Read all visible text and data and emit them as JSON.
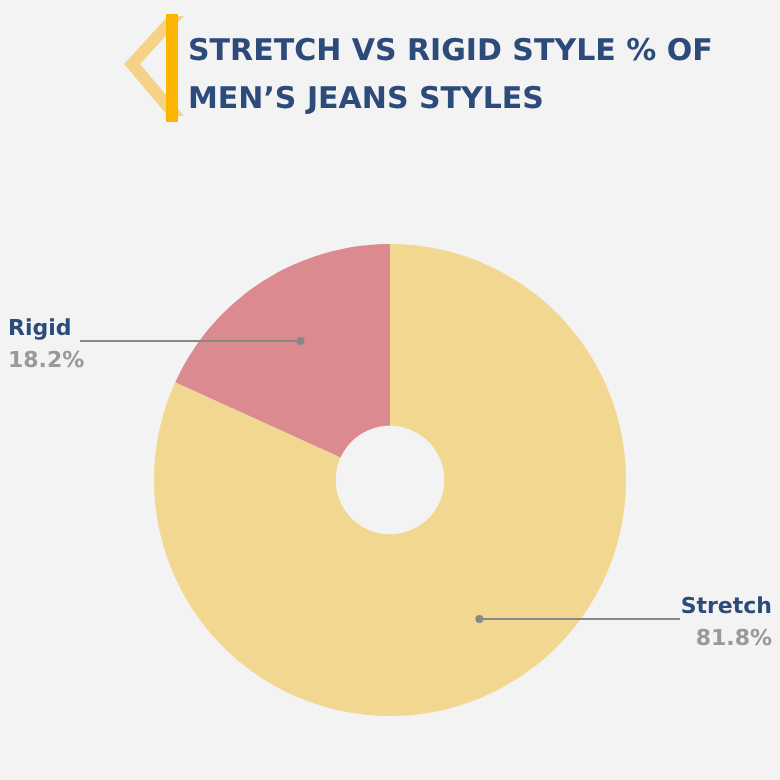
{
  "chart_data": {
    "type": "donut",
    "title": "STRETCH VS RIGID STYLE % OF MEN’S JEANS STYLES",
    "categories": [
      "Stretch",
      "Rigid"
    ],
    "values": [
      81.8,
      18.2
    ],
    "value_labels": [
      "81.8%",
      "18.2%"
    ],
    "colors": [
      "#f2d790",
      "#db8b90"
    ]
  }
}
